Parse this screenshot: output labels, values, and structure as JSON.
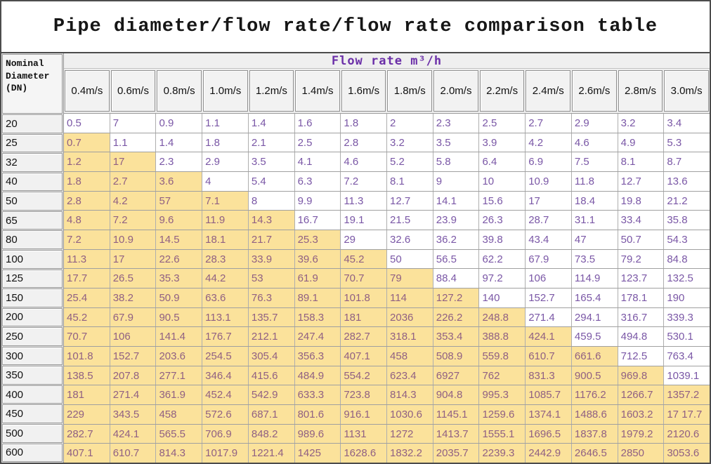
{
  "title": "Pipe diameter/flow rate/flow rate comparison table",
  "colors": {
    "highlight": "#fbe29b",
    "group_header_text": "#6b2fa8",
    "value_text": "#7a57a6",
    "value_text_highlight": "#906083",
    "border": "#9a9a9a",
    "outer_border": "#4c4c4c"
  },
  "chart_data": {
    "type": "table",
    "title": "Pipe diameter/flow rate/flow rate comparison table",
    "row_header_label": "Nominal Diameter(DN)",
    "column_group_label": "Flow rate m³/h",
    "columns": [
      "0.4m/s",
      "0.6m/s",
      "0.8m/s",
      "1.0m/s",
      "1.2m/s",
      "1.4m/s",
      "1.6m/s",
      "1.8m/s",
      "2.0m/s",
      "2.2m/s",
      "2.4m/s",
      "2.6m/s",
      "2.8m/s",
      "3.0m/s"
    ],
    "legend_note": "highlighted_cells = number of leading cells shaded yellow in that row",
    "rows": [
      {
        "dn": "20",
        "highlighted_cells": 0,
        "values": [
          "0.5",
          "7",
          "0.9",
          "1.1",
          "1.4",
          "1.6",
          "1.8",
          "2",
          "2.3",
          "2.5",
          "2.7",
          "2.9",
          "3.2",
          "3.4"
        ]
      },
      {
        "dn": "25",
        "highlighted_cells": 1,
        "values": [
          "0.7",
          "1.1",
          "1.4",
          "1.8",
          "2.1",
          "2.5",
          "2.8",
          "3.2",
          "3.5",
          "3.9",
          "4.2",
          "4.6",
          "4.9",
          "5.3"
        ]
      },
      {
        "dn": "32",
        "highlighted_cells": 2,
        "values": [
          "1.2",
          "17",
          "2.3",
          "2.9",
          "3.5",
          "4.1",
          "4.6",
          "5.2",
          "5.8",
          "6.4",
          "6.9",
          "7.5",
          "8.1",
          "8.7"
        ]
      },
      {
        "dn": "40",
        "highlighted_cells": 3,
        "values": [
          "1.8",
          "2.7",
          "3.6",
          "4",
          "5.4",
          "6.3",
          "7.2",
          "8.1",
          "9",
          "10",
          "10.9",
          "11.8",
          "12.7",
          "13.6"
        ]
      },
      {
        "dn": "50",
        "highlighted_cells": 4,
        "values": [
          "2.8",
          "4.2",
          "57",
          "7.1",
          "8",
          "9.9",
          "11.3",
          "12.7",
          "14.1",
          "15.6",
          "17",
          "18.4",
          "19.8",
          "21.2"
        ]
      },
      {
        "dn": "65",
        "highlighted_cells": 5,
        "values": [
          "4.8",
          "7.2",
          "9.6",
          "11.9",
          "14.3",
          "16.7",
          "19.1",
          "21.5",
          "23.9",
          "26.3",
          "28.7",
          "31.1",
          "33.4",
          "35.8"
        ]
      },
      {
        "dn": "80",
        "highlighted_cells": 6,
        "values": [
          "7.2",
          "10.9",
          "14.5",
          "18.1",
          "21.7",
          "25.3",
          "29",
          "32.6",
          "36.2",
          "39.8",
          "43.4",
          "47",
          "50.7",
          "54.3"
        ]
      },
      {
        "dn": "100",
        "highlighted_cells": 7,
        "values": [
          "11.3",
          "17",
          "22.6",
          "28.3",
          "33.9",
          "39.6",
          "45.2",
          "50",
          "56.5",
          "62.2",
          "67.9",
          "73.5",
          "79.2",
          "84.8"
        ]
      },
      {
        "dn": "125",
        "highlighted_cells": 8,
        "values": [
          "17.7",
          "26.5",
          "35.3",
          "44.2",
          "53",
          "61.9",
          "70.7",
          "79",
          "88.4",
          "97.2",
          "106",
          "114.9",
          "123.7",
          "132.5"
        ]
      },
      {
        "dn": "150",
        "highlighted_cells": 9,
        "values": [
          "25.4",
          "38.2",
          "50.9",
          "63.6",
          "76.3",
          "89.1",
          "101.8",
          "114",
          "127.2",
          "140",
          "152.7",
          "165.4",
          "178.1",
          "190"
        ]
      },
      {
        "dn": "200",
        "highlighted_cells": 10,
        "values": [
          "45.2",
          "67.9",
          "90.5",
          "113.1",
          "135.7",
          "158.3",
          "181",
          "2036",
          "226.2",
          "248.8",
          "271.4",
          "294.1",
          "316.7",
          "339.3"
        ]
      },
      {
        "dn": "250",
        "highlighted_cells": 11,
        "values": [
          "70.7",
          "106",
          "141.4",
          "176.7",
          "212.1",
          "247.4",
          "282.7",
          "318.1",
          "353.4",
          "388.8",
          "424.1",
          "459.5",
          "494.8",
          "530.1"
        ]
      },
      {
        "dn": "300",
        "highlighted_cells": 12,
        "values": [
          "101.8",
          "152.7",
          "203.6",
          "254.5",
          "305.4",
          "356.3",
          "407.1",
          "458",
          "508.9",
          "559.8",
          "610.7",
          "661.6",
          "712.5",
          "763.4"
        ]
      },
      {
        "dn": "350",
        "highlighted_cells": 13,
        "values": [
          "138.5",
          "207.8",
          "277.1",
          "346.4",
          "415.6",
          "484.9",
          "554.2",
          "623.4",
          "6927",
          "762",
          "831.3",
          "900.5",
          "969.8",
          "1039.1"
        ]
      },
      {
        "dn": "400",
        "highlighted_cells": 14,
        "values": [
          "181",
          "271.4",
          "361.9",
          "452.4",
          "542.9",
          "633.3",
          "723.8",
          "814.3",
          "904.8",
          "995.3",
          "1085.7",
          "1176.2",
          "1266.7",
          "1357.2"
        ]
      },
      {
        "dn": "450",
        "highlighted_cells": 14,
        "values": [
          "229",
          "343.5",
          "458",
          "572.6",
          "687.1",
          "801.6",
          "916.1",
          "1030.6",
          "1145.1",
          "1259.6",
          "1374.1",
          "1488.6",
          "1603.2",
          "17 17.7"
        ]
      },
      {
        "dn": "500",
        "highlighted_cells": 14,
        "values": [
          "282.7",
          "424.1",
          "565.5",
          "706.9",
          "848.2",
          "989.6",
          "1131",
          "1272",
          "1413.7",
          "1555.1",
          "1696.5",
          "1837.8",
          "1979.2",
          "2120.6"
        ]
      },
      {
        "dn": "600",
        "highlighted_cells": 14,
        "values": [
          "407.1",
          "610.7",
          "814.3",
          "1017.9",
          "1221.4",
          "1425",
          "1628.6",
          "1832.2",
          "2035.7",
          "2239.3",
          "2442.9",
          "2646.5",
          "2850",
          "3053.6"
        ]
      }
    ]
  }
}
